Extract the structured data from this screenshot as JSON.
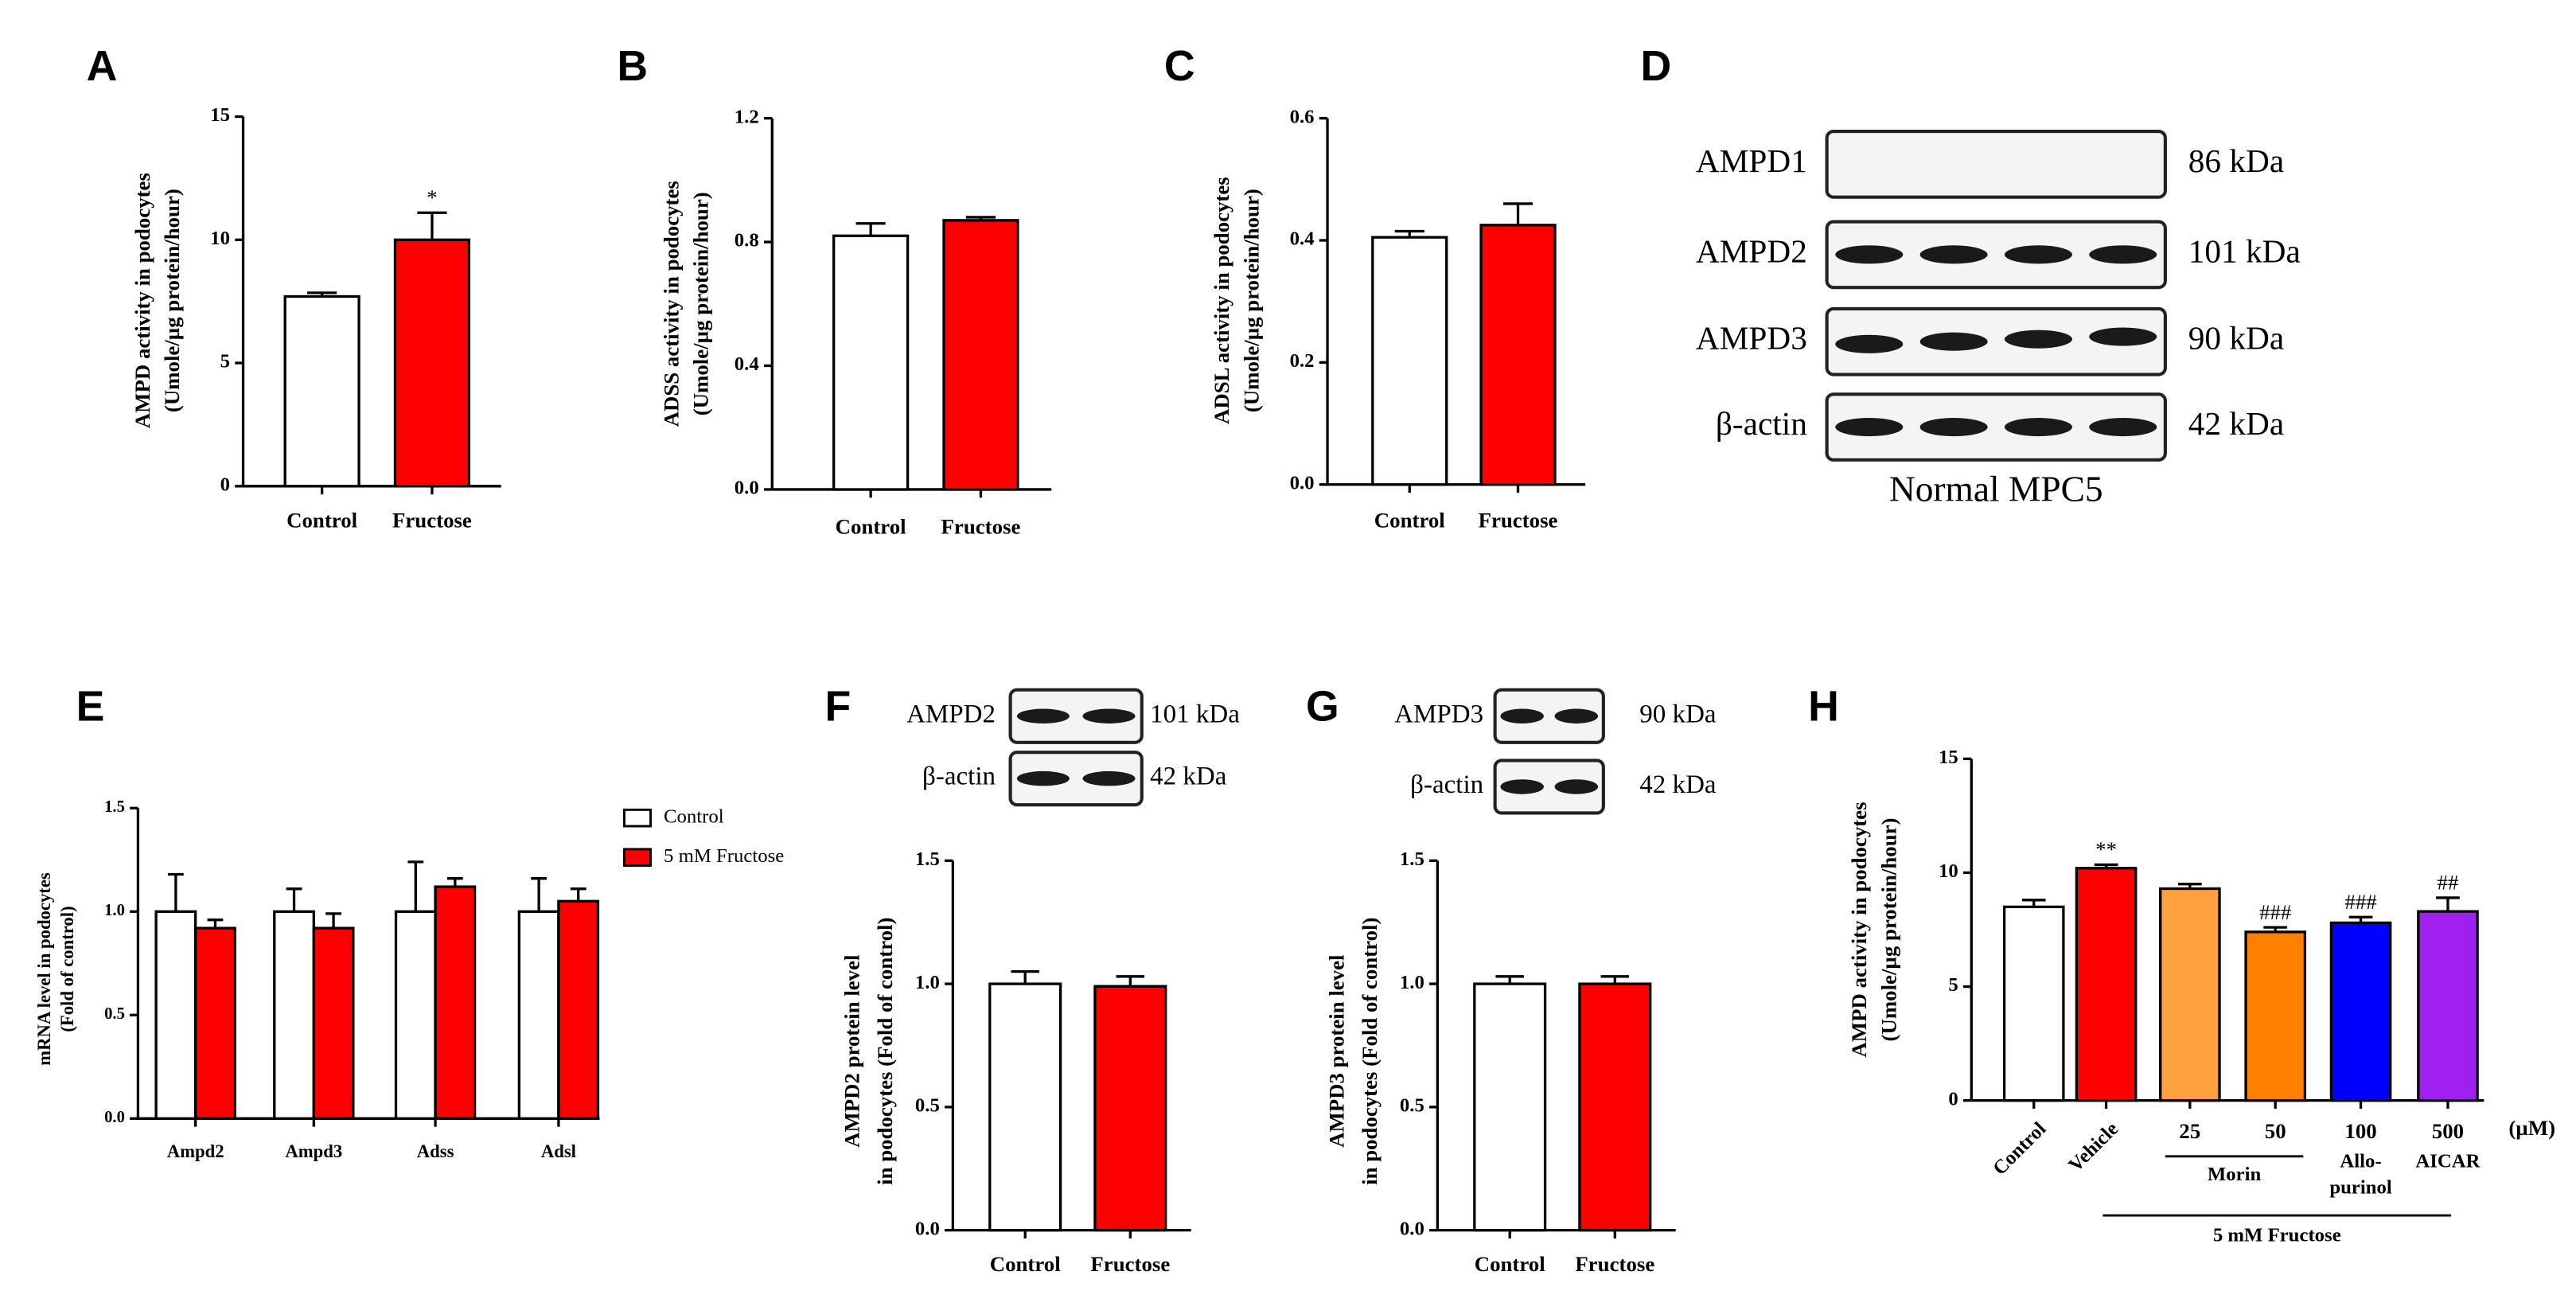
{
  "chart_data": [
    {
      "panel": "A",
      "type": "bar",
      "ylabel": [
        "AMPD activity in podocytes",
        "(Umole/µg protein/hour)"
      ],
      "categories": [
        "Control",
        "Fructose"
      ],
      "values": [
        7.7,
        10.0
      ],
      "errors": [
        0.15,
        1.1
      ],
      "colors": [
        "#ffffff",
        "#ff0000"
      ],
      "annotations": [
        null,
        "*"
      ],
      "ylim": [
        0,
        15
      ],
      "yticks": [
        0,
        5,
        10,
        15
      ]
    },
    {
      "panel": "B",
      "type": "bar",
      "ylabel": [
        "ADSS activity in podocytes",
        "(Umole/µg protein/hour)"
      ],
      "categories": [
        "Control",
        "Fructose"
      ],
      "values": [
        0.82,
        0.87
      ],
      "errors": [
        0.04,
        0.01
      ],
      "colors": [
        "#ffffff",
        "#ff0000"
      ],
      "ylim": [
        0,
        1.2
      ],
      "yticks": [
        {
          "value": 0,
          "label": "0.0"
        },
        0.4,
        0.8,
        1.2
      ]
    },
    {
      "panel": "C",
      "type": "bar",
      "ylabel": [
        "ADSL activity in podocytes",
        "(Umole/µg protein/hour)"
      ],
      "categories": [
        "Control",
        "Fructose"
      ],
      "values": [
        0.405,
        0.425
      ],
      "errors": [
        0.01,
        0.035
      ],
      "colors": [
        "#ffffff",
        "#ff0000"
      ],
      "ylim": [
        0,
        0.6
      ],
      "yticks": [
        {
          "value": 0,
          "label": "0.0"
        },
        0.2,
        0.4,
        0.6
      ]
    },
    {
      "panel": "E",
      "type": "grouped-bar",
      "ylabel": [
        "mRNA level in podocytes",
        "(Fold of control)"
      ],
      "categories": [
        "Ampd2",
        "Ampd3",
        "Adss",
        "Adsl"
      ],
      "series": [
        {
          "name": "Control",
          "color": "#ffffff",
          "values": [
            1.0,
            1.0,
            1.0,
            1.0
          ],
          "errors": [
            0.18,
            0.11,
            0.24,
            0.16
          ]
        },
        {
          "name": "5 mM Fructose",
          "color": "#ff0000",
          "values": [
            0.92,
            0.92,
            1.12,
            1.05
          ],
          "errors": [
            0.04,
            0.07,
            0.04,
            0.06
          ]
        }
      ],
      "ylim": [
        0,
        1.5
      ],
      "yticks": [
        {
          "value": 0,
          "label": "0.0"
        },
        0.5,
        {
          "value": 1,
          "label": "1.0"
        },
        1.5
      ]
    },
    {
      "panel": "F",
      "type": "bar",
      "ylabel": [
        "AMPD2 protein level",
        "in podocytes (Fold of control)"
      ],
      "categories": [
        "Control",
        "Fructose"
      ],
      "values": [
        1.0,
        0.99
      ],
      "errors": [
        0.05,
        0.04
      ],
      "colors": [
        "#ffffff",
        "#ff0000"
      ],
      "ylim": [
        0,
        1.5
      ],
      "yticks": [
        {
          "value": 0,
          "label": "0.0"
        },
        0.5,
        {
          "value": 1,
          "label": "1.0"
        },
        1.5
      ]
    },
    {
      "panel": "G",
      "type": "bar",
      "ylabel": [
        "AMPD3 protein level",
        "in podocytes (Fold of control)"
      ],
      "categories": [
        "Control",
        "Fructose"
      ],
      "values": [
        1.0,
        1.0
      ],
      "errors": [
        0.03,
        0.03
      ],
      "colors": [
        "#ffffff",
        "#ff0000"
      ],
      "ylim": [
        0,
        1.5
      ],
      "yticks": [
        {
          "value": 0,
          "label": "0.0"
        },
        0.5,
        {
          "value": 1,
          "label": "1.0"
        },
        1.5
      ]
    },
    {
      "panel": "H",
      "type": "bar",
      "ylabel": [
        "AMPD activity in podocytes",
        "(Umole/µg protein/hour)"
      ],
      "categories": [
        "Control",
        "Vehicle",
        "25",
        "50",
        "100",
        "500"
      ],
      "x_unit": "(µM)",
      "group_labels": [
        [
          "Morin"
        ],
        [
          "Allo-",
          "purinol"
        ],
        [
          "AICAR"
        ]
      ],
      "bracket_label": "5 mM Fructose",
      "values": [
        8.5,
        10.2,
        9.3,
        7.4,
        7.8,
        8.3
      ],
      "errors": [
        0.3,
        0.15,
        0.2,
        0.2,
        0.25,
        0.6
      ],
      "colors": [
        "#ffffff",
        "#ff0000",
        "#ffa040",
        "#ff8000",
        "#0000ff",
        "#a020f0"
      ],
      "annotations": [
        null,
        "**",
        null,
        "###",
        "###",
        "##"
      ],
      "ylim": [
        0,
        15
      ],
      "yticks": [
        0,
        5,
        10,
        15
      ]
    }
  ],
  "blots": [
    {
      "panel": "D",
      "rows": [
        {
          "label": "AMPD1",
          "kda": "86 kDa"
        },
        {
          "label": "AMPD2",
          "kda": "101 kDa"
        },
        {
          "label": "AMPD3",
          "kda": "90 kDa"
        },
        {
          "label": "β-actin",
          "kda": "42 kDa"
        }
      ],
      "caption": "Normal MPC5"
    },
    {
      "rows": [
        {
          "label": "AMPD2",
          "kda": "101 kDa"
        },
        {
          "label": "β-actin",
          "kda": "42 kDa"
        }
      ]
    },
    {
      "rows": [
        {
          "label": "AMPD3",
          "kda": "90 kDa"
        },
        {
          "label": "β-actin",
          "kda": "42 kDa"
        }
      ]
    }
  ]
}
